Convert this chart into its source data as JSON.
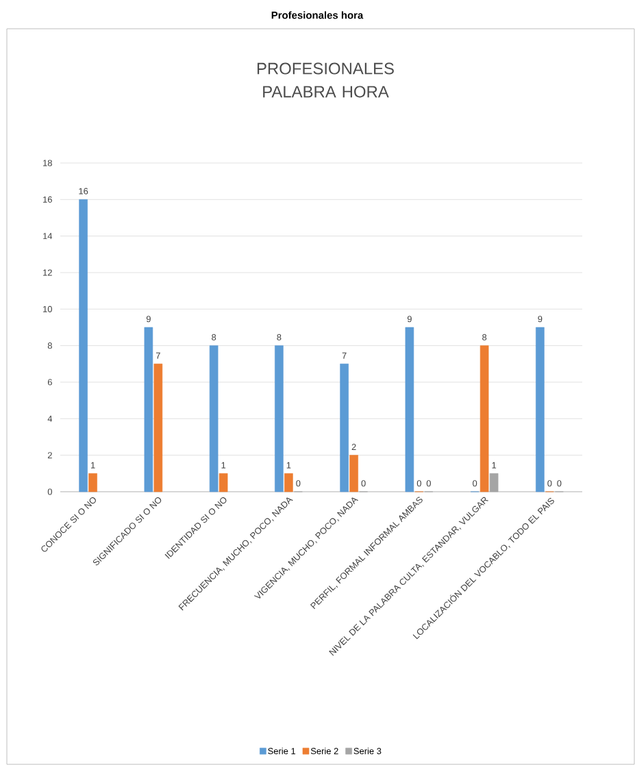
{
  "chart_data": {
    "type": "bar",
    "title": "Profesionales hora",
    "subtitle": "PROFESIONALES PALABRA HORA",
    "categories": [
      "CONOCE  SI O NO",
      "SIGNIFICADO SI O NO",
      "IDENTIDAD SI O NO",
      "FRECUENCIA, MUCHO, POCO, NADA",
      "VIGENCIA, MUCHO, POCO, NADA",
      "PERFIL, FORMAL INFORMAL AMBAS",
      "NIVEL DE LA PALABRA CULTA, ESTANDAR, VULGAR",
      "LOCALIZACIÓN DEL VOCABLO, TODO EL PAIS"
    ],
    "series": [
      {
        "name": "Serie 1",
        "color": "#5b9bd5",
        "values": [
          16,
          9,
          8,
          8,
          7,
          9,
          0,
          9
        ]
      },
      {
        "name": "Serie 2",
        "color": "#ed7d31",
        "values": [
          1,
          7,
          1,
          1,
          2,
          0,
          8,
          0
        ]
      },
      {
        "name": "Serie 3",
        "color": "#a5a5a5",
        "values": [
          null,
          null,
          null,
          0,
          0,
          0,
          1,
          0
        ]
      }
    ],
    "ylim": [
      0,
      18
    ],
    "yticks": [
      0,
      2,
      4,
      6,
      8,
      10,
      12,
      14,
      16,
      18
    ],
    "grid": "y",
    "legend": "bottom",
    "data_labels": true
  }
}
